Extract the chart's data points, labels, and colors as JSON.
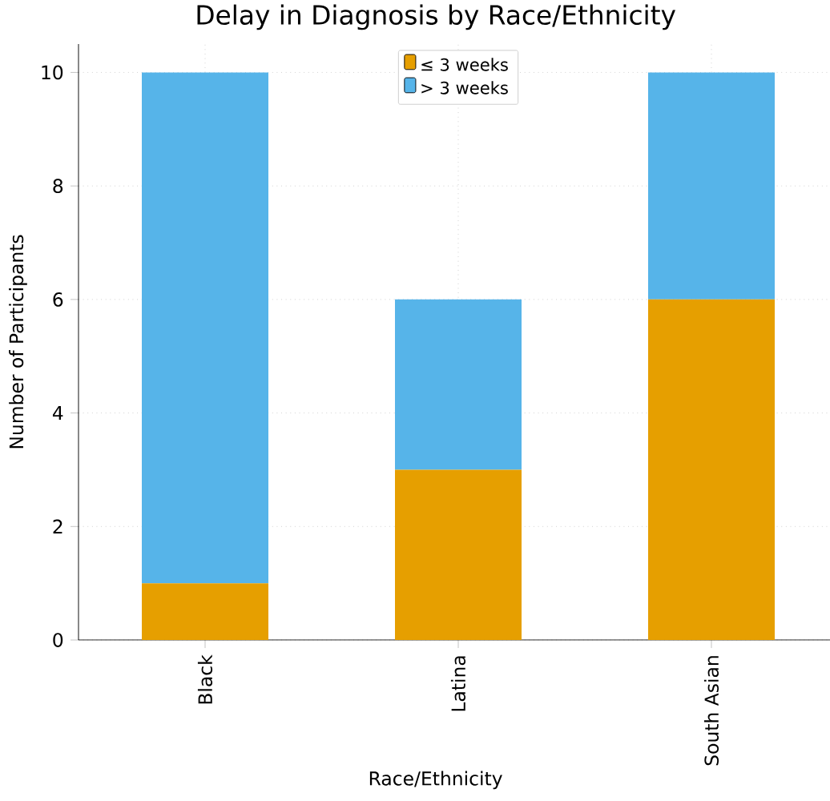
{
  "chart_data": {
    "type": "bar",
    "title": "Delay in Diagnosis by Race/Ethnicity",
    "xlabel": "Race/Ethnicity",
    "ylabel": "Number of Participants",
    "categories": [
      "Black",
      "Latina",
      "South Asian"
    ],
    "series": [
      {
        "name": "≤ 3 weeks",
        "color": "#e69f00",
        "values": [
          1,
          3,
          6
        ]
      },
      {
        "name": "> 3 weeks",
        "color": "#56b4e9",
        "values": [
          9,
          3,
          4
        ]
      }
    ],
    "stacked": true,
    "ylim": [
      0,
      10.5
    ],
    "yticks": [
      0,
      2,
      4,
      6,
      8,
      10
    ],
    "grid": true,
    "legend": "top"
  }
}
